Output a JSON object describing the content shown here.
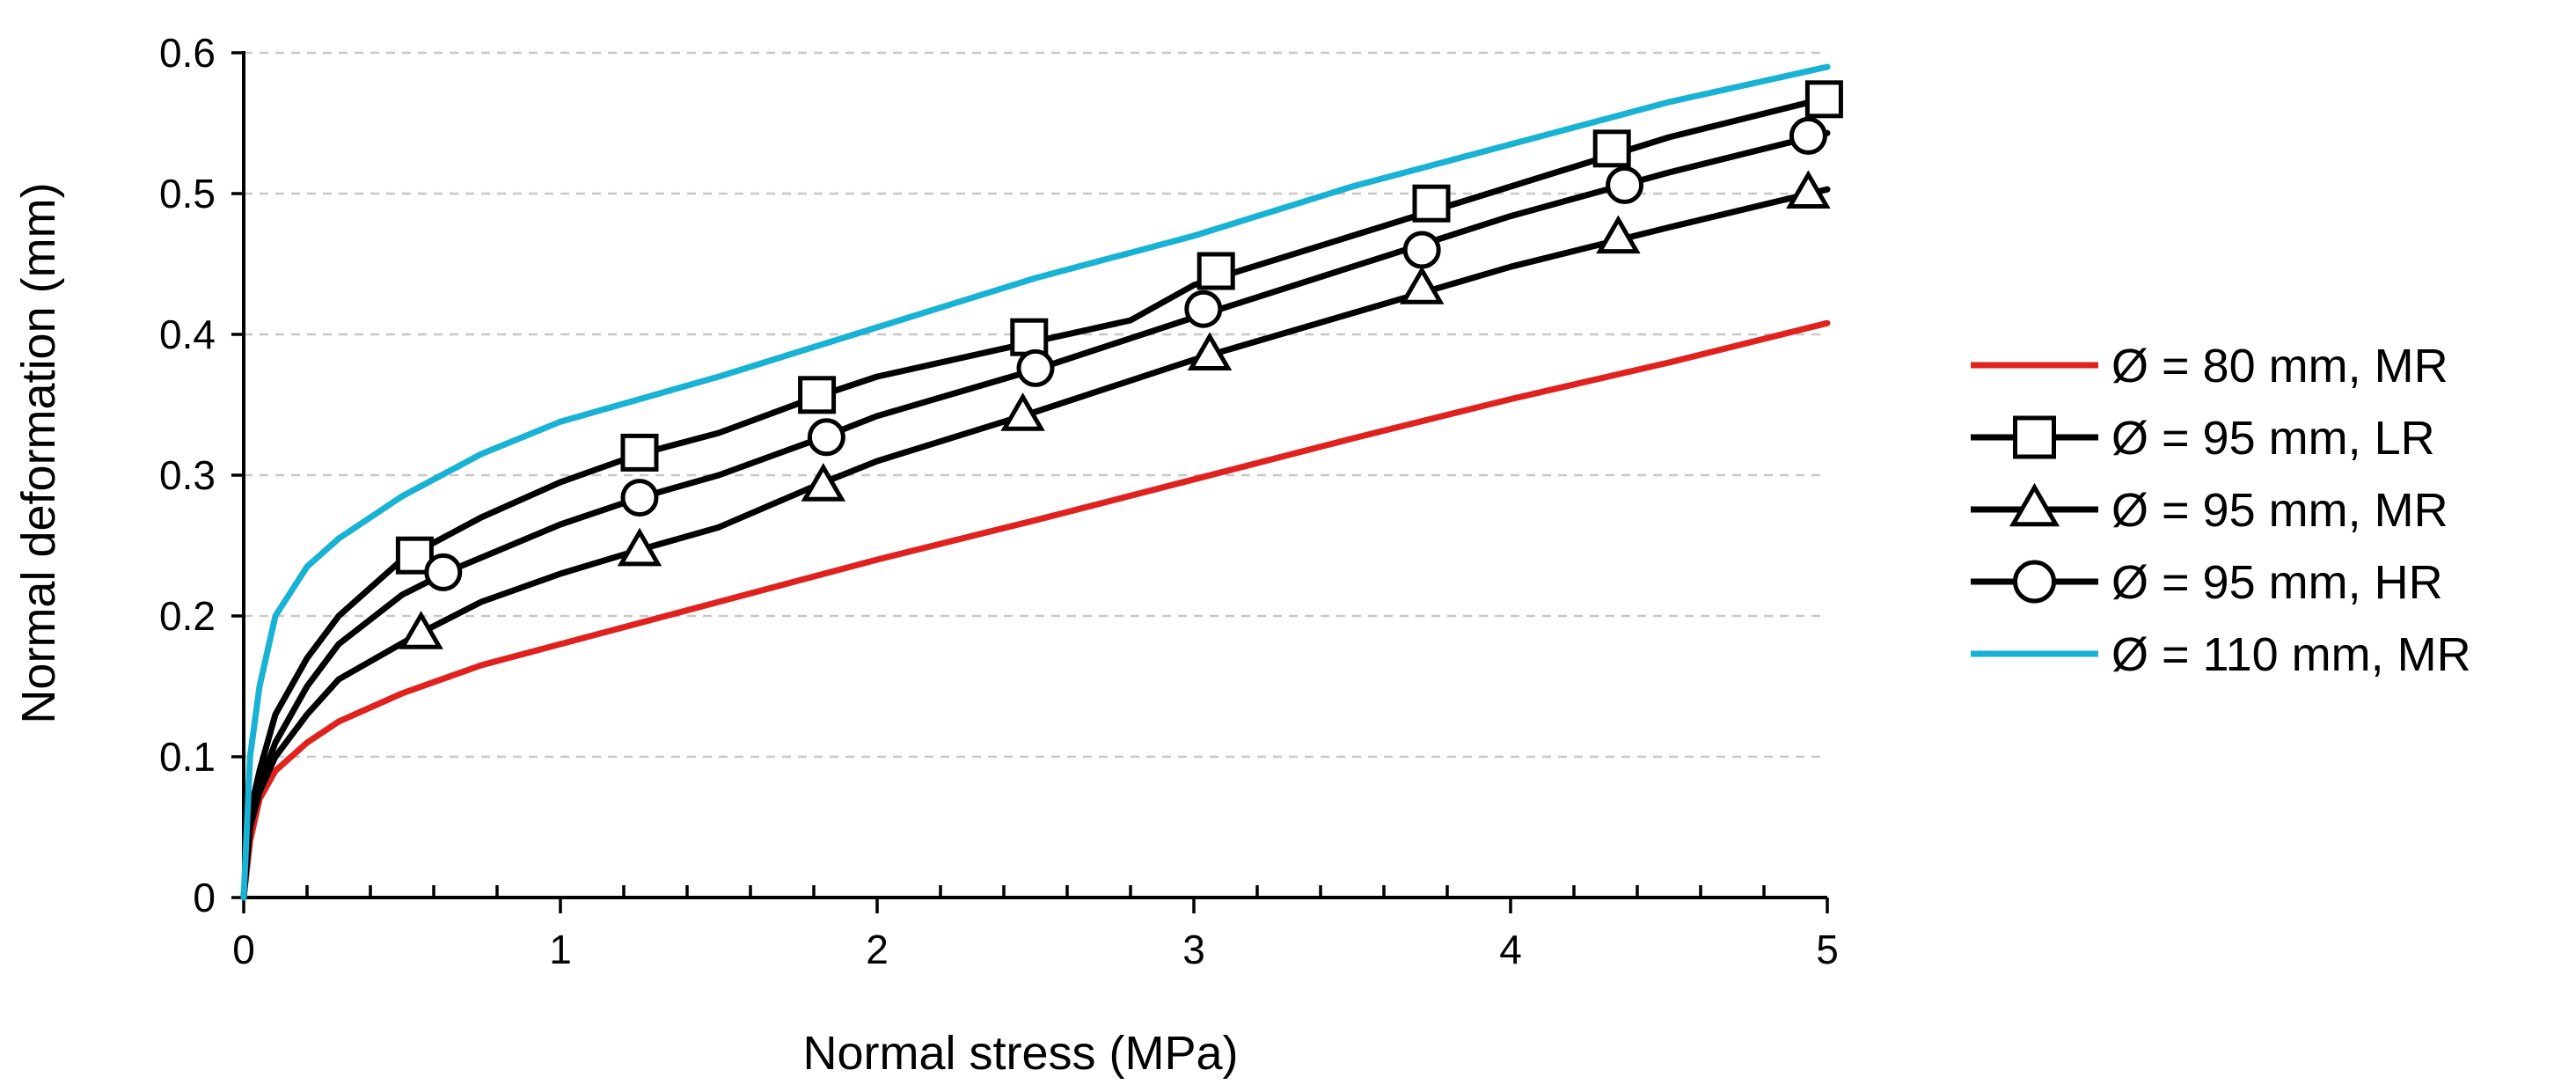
{
  "chart_data": {
    "type": "line",
    "title": "",
    "xlabel": "Normal stress (MPa)",
    "ylabel": "Normal deformation (mm)",
    "xlim": [
      0,
      5
    ],
    "ylim": [
      0,
      0.6
    ],
    "x_ticks": [
      0,
      1,
      2,
      3,
      4,
      5
    ],
    "x_tick_labels": [
      "0",
      "1",
      "2",
      "3",
      "4",
      "5"
    ],
    "y_ticks": [
      0,
      0.1,
      0.2,
      0.3,
      0.4,
      0.5,
      0.6
    ],
    "y_tick_labels": [
      "0",
      "0.1",
      "0.2",
      "0.3",
      "0.4",
      "0.5",
      "0.6"
    ],
    "grid": "horizontal dashed",
    "legend_position": "right",
    "series": [
      {
        "name": "Ø = 80 mm, MR",
        "color": "#e0211d",
        "marker": "none",
        "x": [
          0,
          0.02,
          0.05,
          0.1,
          0.2,
          0.3,
          0.5,
          0.75,
          1.0,
          1.5,
          2.0,
          2.5,
          3.0,
          3.5,
          4.0,
          4.5,
          5.0
        ],
        "y": [
          0,
          0.04,
          0.07,
          0.09,
          0.11,
          0.125,
          0.145,
          0.165,
          0.18,
          0.21,
          0.24,
          0.268,
          0.297,
          0.326,
          0.354,
          0.38,
          0.408
        ],
        "marker_x": [],
        "marker_y": []
      },
      {
        "name": "Ø = 95 mm, LR",
        "color": "#000000",
        "marker": "square",
        "x": [
          0,
          0.02,
          0.05,
          0.1,
          0.2,
          0.3,
          0.5,
          0.75,
          1.0,
          1.25,
          1.5,
          1.8,
          2.0,
          2.5,
          2.8,
          3.0,
          3.5,
          4.0,
          4.5,
          5.0
        ],
        "y": [
          0,
          0.06,
          0.09,
          0.13,
          0.17,
          0.2,
          0.24,
          0.27,
          0.295,
          0.315,
          0.33,
          0.355,
          0.37,
          0.395,
          0.41,
          0.435,
          0.47,
          0.505,
          0.54,
          0.568
        ],
        "marker_x": [
          0.54,
          1.25,
          1.81,
          2.48,
          3.07,
          3.75,
          4.32,
          4.99
        ],
        "marker_y": [
          0.243,
          0.316,
          0.357,
          0.398,
          0.445,
          0.493,
          0.532,
          0.567
        ]
      },
      {
        "name": "Ø = 95 mm, MR",
        "color": "#000000",
        "marker": "triangle",
        "x": [
          0,
          0.02,
          0.05,
          0.1,
          0.2,
          0.3,
          0.55,
          0.75,
          1.0,
          1.25,
          1.5,
          1.8,
          2.0,
          2.5,
          3.0,
          3.5,
          4.0,
          4.5,
          5.0
        ],
        "y": [
          0,
          0.05,
          0.075,
          0.1,
          0.13,
          0.155,
          0.187,
          0.21,
          0.23,
          0.247,
          0.263,
          0.292,
          0.31,
          0.345,
          0.382,
          0.415,
          0.448,
          0.476,
          0.503
        ],
        "marker_x": [
          0.56,
          1.25,
          1.83,
          2.46,
          3.05,
          3.72,
          4.34,
          4.94
        ],
        "marker_y": [
          0.187,
          0.246,
          0.292,
          0.342,
          0.385,
          0.432,
          0.468,
          0.5
        ]
      },
      {
        "name": "Ø = 95 mm, HR",
        "color": "#000000",
        "marker": "circle",
        "x": [
          0,
          0.02,
          0.05,
          0.1,
          0.2,
          0.3,
          0.5,
          0.65,
          1.0,
          1.25,
          1.5,
          1.83,
          2.0,
          2.5,
          3.0,
          3.5,
          4.0,
          4.5,
          5.0
        ],
        "y": [
          0,
          0.055,
          0.08,
          0.11,
          0.15,
          0.18,
          0.215,
          0.232,
          0.265,
          0.284,
          0.3,
          0.327,
          0.342,
          0.375,
          0.412,
          0.448,
          0.484,
          0.515,
          0.543
        ],
        "marker_x": [
          0.63,
          1.25,
          1.84,
          2.5,
          3.03,
          3.72,
          4.36,
          4.94
        ],
        "marker_y": [
          0.231,
          0.284,
          0.327,
          0.376,
          0.418,
          0.46,
          0.506,
          0.541
        ]
      },
      {
        "name": "Ø = 110 mm, MR",
        "color": "#18b2d4",
        "marker": "none",
        "x": [
          0,
          0.02,
          0.05,
          0.1,
          0.2,
          0.3,
          0.5,
          0.75,
          1.0,
          1.5,
          2.0,
          2.5,
          3.0,
          3.5,
          4.0,
          4.5,
          5.0
        ],
        "y": [
          0,
          0.1,
          0.15,
          0.2,
          0.235,
          0.255,
          0.285,
          0.315,
          0.338,
          0.37,
          0.405,
          0.44,
          0.47,
          0.505,
          0.535,
          0.565,
          0.59
        ],
        "marker_x": [],
        "marker_y": []
      }
    ]
  }
}
